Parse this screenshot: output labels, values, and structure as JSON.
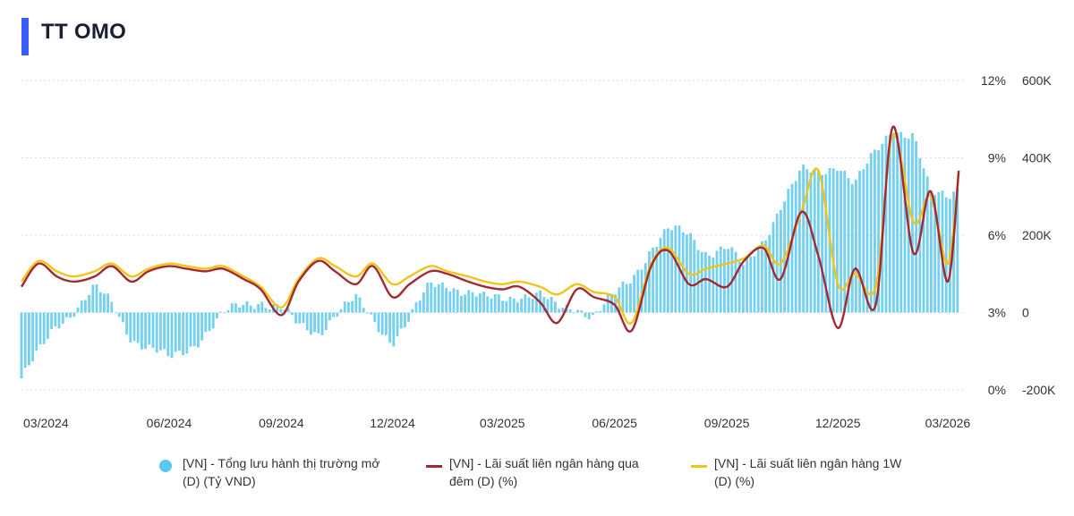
{
  "title": "TT OMO",
  "colors": {
    "accent": "#3b5bfd",
    "bars": "#5ac8ec",
    "overnight": "#a3282f",
    "oneweek": "#f0c419"
  },
  "legend": [
    {
      "line1": "[VN] - Tổng lưu hành thị trường mở",
      "line2": "(D) (Tỷ VND)"
    },
    {
      "line1": "[VN] - Lãi suất liên ngân hàng qua",
      "line2": "đêm (D) (%)"
    },
    {
      "line1": "[VN] - Lãi suất liên ngân hàng 1W",
      "line2": "(D) (%)"
    }
  ],
  "chart_data": {
    "type": "bar+line",
    "title": "TT OMO",
    "x_labels": [
      "03/2024",
      "06/2024",
      "09/2024",
      "12/2024",
      "03/2025",
      "06/2025",
      "09/2025",
      "12/2025",
      "03/2026"
    ],
    "y_left_ticks": [
      "12%",
      "9%",
      "6%",
      "3%",
      "0%"
    ],
    "y_right_ticks": [
      "600K",
      "400K",
      "200K",
      "0",
      "-200K"
    ],
    "y_left_range": [
      0,
      12
    ],
    "y_right_range": [
      -200000,
      600000
    ],
    "grid": "horizontal dotted",
    "legend_position": "bottom",
    "series": [
      {
        "name": "[VN] - Tổng lưu hành thị trường mở (D) (Tỷ VND)",
        "type": "bar",
        "axis": "right",
        "points": [
          [
            "2024-02",
            -170000
          ],
          [
            "2024-02-15",
            -110000
          ],
          [
            "2024-03",
            -30000
          ],
          [
            "2024-03-15",
            10000
          ],
          [
            "2024-04",
            60000
          ],
          [
            "2024-04-15",
            20000
          ],
          [
            "2024-05",
            -60000
          ],
          [
            "2024-05-15",
            -90000
          ],
          [
            "2024-06",
            -125000
          ],
          [
            "2024-06-15",
            -95000
          ],
          [
            "2024-07",
            -50000
          ],
          [
            "2024-07-15",
            -10000
          ],
          [
            "2024-08",
            20000
          ],
          [
            "2024-08-15",
            35000
          ],
          [
            "2024-09",
            10000
          ],
          [
            "2024-09-15",
            -40000
          ],
          [
            "2024-10",
            -50000
          ],
          [
            "2024-10-15",
            0
          ],
          [
            "2024-11",
            30000
          ],
          [
            "2024-11-15",
            -20000
          ],
          [
            "2024-12",
            -70000
          ],
          [
            "2024-12-15",
            -20000
          ],
          [
            "2025-01",
            70000
          ],
          [
            "2025-01-15",
            80000
          ],
          [
            "2025-02",
            50000
          ],
          [
            "2025-02-15",
            30000
          ],
          [
            "2025-03",
            40000
          ],
          [
            "2025-03-15",
            50000
          ],
          [
            "2025-04",
            40000
          ],
          [
            "2025-04-15",
            10000
          ],
          [
            "2025-05",
            20000
          ],
          [
            "2025-05-15",
            -10000
          ],
          [
            "2025-06",
            40000
          ],
          [
            "2025-06-15",
            90000
          ],
          [
            "2025-07",
            170000
          ],
          [
            "2025-07-15",
            210000
          ],
          [
            "2025-08",
            200000
          ],
          [
            "2025-08-15",
            160000
          ],
          [
            "2025-09",
            170000
          ],
          [
            "2025-09-15",
            110000
          ],
          [
            "2025-10",
            190000
          ],
          [
            "2025-10-15",
            280000
          ],
          [
            "2025-11",
            360000
          ],
          [
            "2025-11-15",
            360000
          ],
          [
            "2025-12",
            390000
          ],
          [
            "2025-12-15",
            330000
          ],
          [
            "2026-01",
            410000
          ],
          [
            "2026-01-15",
            480000
          ],
          [
            "2026-02",
            460000
          ],
          [
            "2026-02-15",
            300000
          ],
          [
            "2026-03",
            300000
          ],
          [
            "2026-03-10",
            330000
          ]
        ]
      },
      {
        "name": "[VN] - Lãi suất liên ngân hàng qua đêm (D) (%)",
        "type": "line",
        "axis": "left",
        "points": [
          [
            "2024-02",
            4.0
          ],
          [
            "2024-02-15",
            4.9
          ],
          [
            "2024-03",
            4.4
          ],
          [
            "2024-03-15",
            4.2
          ],
          [
            "2024-04",
            4.4
          ],
          [
            "2024-04-15",
            4.8
          ],
          [
            "2024-05",
            4.2
          ],
          [
            "2024-05-15",
            4.6
          ],
          [
            "2024-06",
            4.8
          ],
          [
            "2024-06-15",
            4.7
          ],
          [
            "2024-07",
            4.6
          ],
          [
            "2024-07-15",
            4.7
          ],
          [
            "2024-08",
            4.3
          ],
          [
            "2024-08-15",
            3.9
          ],
          [
            "2024-09",
            2.9
          ],
          [
            "2024-09-15",
            4.2
          ],
          [
            "2024-10",
            5.0
          ],
          [
            "2024-10-15",
            4.6
          ],
          [
            "2024-11",
            4.1
          ],
          [
            "2024-11-15",
            4.8
          ],
          [
            "2024-12",
            3.6
          ],
          [
            "2024-12-15",
            4.1
          ],
          [
            "2025-01",
            4.6
          ],
          [
            "2025-01-15",
            4.5
          ],
          [
            "2025-02",
            4.2
          ],
          [
            "2025-02-15",
            4.0
          ],
          [
            "2025-03",
            3.9
          ],
          [
            "2025-03-15",
            4.0
          ],
          [
            "2025-04",
            3.4
          ],
          [
            "2025-04-15",
            2.6
          ],
          [
            "2025-05",
            3.9
          ],
          [
            "2025-05-15",
            3.6
          ],
          [
            "2025-06",
            3.3
          ],
          [
            "2025-06-15",
            2.3
          ],
          [
            "2025-07",
            4.8
          ],
          [
            "2025-07-15",
            5.4
          ],
          [
            "2025-08",
            4.1
          ],
          [
            "2025-08-15",
            4.3
          ],
          [
            "2025-09",
            4.0
          ],
          [
            "2025-09-15",
            5.0
          ],
          [
            "2025-10",
            5.5
          ],
          [
            "2025-10-15",
            4.3
          ],
          [
            "2025-11",
            6.9
          ],
          [
            "2025-11-15",
            5.2
          ],
          [
            "2025-12",
            2.4
          ],
          [
            "2025-12-15",
            4.7
          ],
          [
            "2026-01",
            3.3
          ],
          [
            "2026-01-15",
            10.2
          ],
          [
            "2026-02",
            5.3
          ],
          [
            "2026-02-15",
            7.7
          ],
          [
            "2026-03",
            4.2
          ],
          [
            "2026-03-10",
            8.5
          ]
        ]
      },
      {
        "name": "[VN] - Lãi suất liên ngân hàng 1W (D) (%)",
        "type": "line",
        "axis": "left",
        "points": [
          [
            "2024-02",
            4.2
          ],
          [
            "2024-02-15",
            5.0
          ],
          [
            "2024-03",
            4.6
          ],
          [
            "2024-03-15",
            4.4
          ],
          [
            "2024-04",
            4.6
          ],
          [
            "2024-04-15",
            4.9
          ],
          [
            "2024-05",
            4.4
          ],
          [
            "2024-05-15",
            4.7
          ],
          [
            "2024-06",
            4.9
          ],
          [
            "2024-06-15",
            4.8
          ],
          [
            "2024-07",
            4.7
          ],
          [
            "2024-07-15",
            4.8
          ],
          [
            "2024-08",
            4.4
          ],
          [
            "2024-08-15",
            4.0
          ],
          [
            "2024-09",
            3.2
          ],
          [
            "2024-09-15",
            4.3
          ],
          [
            "2024-10",
            5.1
          ],
          [
            "2024-10-15",
            4.8
          ],
          [
            "2024-11",
            4.4
          ],
          [
            "2024-11-15",
            4.9
          ],
          [
            "2024-12",
            4.1
          ],
          [
            "2024-12-15",
            4.4
          ],
          [
            "2025-01",
            4.8
          ],
          [
            "2025-01-15",
            4.6
          ],
          [
            "2025-02",
            4.4
          ],
          [
            "2025-02-15",
            4.2
          ],
          [
            "2025-03",
            4.1
          ],
          [
            "2025-03-15",
            4.2
          ],
          [
            "2025-04",
            4.0
          ],
          [
            "2025-04-15",
            3.7
          ],
          [
            "2025-05",
            4.1
          ],
          [
            "2025-05-15",
            3.8
          ],
          [
            "2025-06",
            3.6
          ],
          [
            "2025-06-15",
            2.6
          ],
          [
            "2025-07",
            4.9
          ],
          [
            "2025-07-15",
            5.5
          ],
          [
            "2025-08",
            4.5
          ],
          [
            "2025-08-15",
            4.7
          ],
          [
            "2025-09",
            4.9
          ],
          [
            "2025-09-15",
            5.1
          ],
          [
            "2025-10",
            5.6
          ],
          [
            "2025-10-15",
            4.9
          ],
          [
            "2025-11",
            6.9
          ],
          [
            "2025-11-15",
            8.5
          ],
          [
            "2025-12",
            4.1
          ],
          [
            "2025-12-15",
            4.5
          ],
          [
            "2026-01",
            4.0
          ],
          [
            "2026-01-15",
            9.9
          ],
          [
            "2026-02",
            6.5
          ],
          [
            "2026-02-15",
            7.5
          ],
          [
            "2026-03",
            4.9
          ],
          [
            "2026-03-10",
            8.4
          ]
        ]
      }
    ]
  }
}
